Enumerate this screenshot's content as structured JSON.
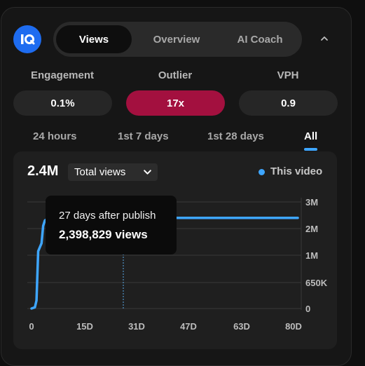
{
  "app": {
    "logo_text": "IQ"
  },
  "tabs": [
    {
      "label": "Views",
      "active": true
    },
    {
      "label": "Overview",
      "active": false
    },
    {
      "label": "AI Coach",
      "active": false
    }
  ],
  "metrics": [
    {
      "label": "Engagement",
      "value": "0.1%"
    },
    {
      "label": "Outlier",
      "value": "17x",
      "color": "#a3103f"
    },
    {
      "label": "VPH",
      "value": "0.9"
    }
  ],
  "ranges": [
    {
      "label": "24 hours",
      "active": false
    },
    {
      "label": "1st 7 days",
      "active": false
    },
    {
      "label": "1st 28 days",
      "active": false
    },
    {
      "label": "All",
      "active": true
    }
  ],
  "chart_header": {
    "total": "2.4M",
    "metric_select": "Total views",
    "legend": "This video"
  },
  "tooltip": {
    "line1": "27 days after publish",
    "line2": "2,398,829 views"
  },
  "colors": {
    "accent": "#3ea6ff",
    "outlier": "#a3103f",
    "logo": "#1e6cf0"
  },
  "chart_data": {
    "type": "line",
    "title": "",
    "xlabel": "",
    "ylabel": "",
    "x_ticks": [
      "0",
      "15D",
      "31D",
      "47D",
      "63D",
      "80D"
    ],
    "y_ticks": [
      "0",
      "650K",
      "1M",
      "2M",
      "3M"
    ],
    "xlim": [
      0,
      80
    ],
    "series": [
      {
        "name": "This video",
        "x": [
          0,
          1,
          1.5,
          2,
          2.5,
          3,
          3.5,
          4,
          5,
          10,
          20,
          27,
          40,
          50,
          63,
          80
        ],
        "y": [
          0,
          30000,
          200000,
          1150000,
          1300000,
          1450000,
          2100000,
          2300000,
          2390000,
          2395000,
          2397000,
          2398829,
          2399500,
          2400000,
          2400000,
          2400000
        ]
      }
    ],
    "hover_x": 27,
    "grid": true,
    "legend_position": "top-right"
  }
}
